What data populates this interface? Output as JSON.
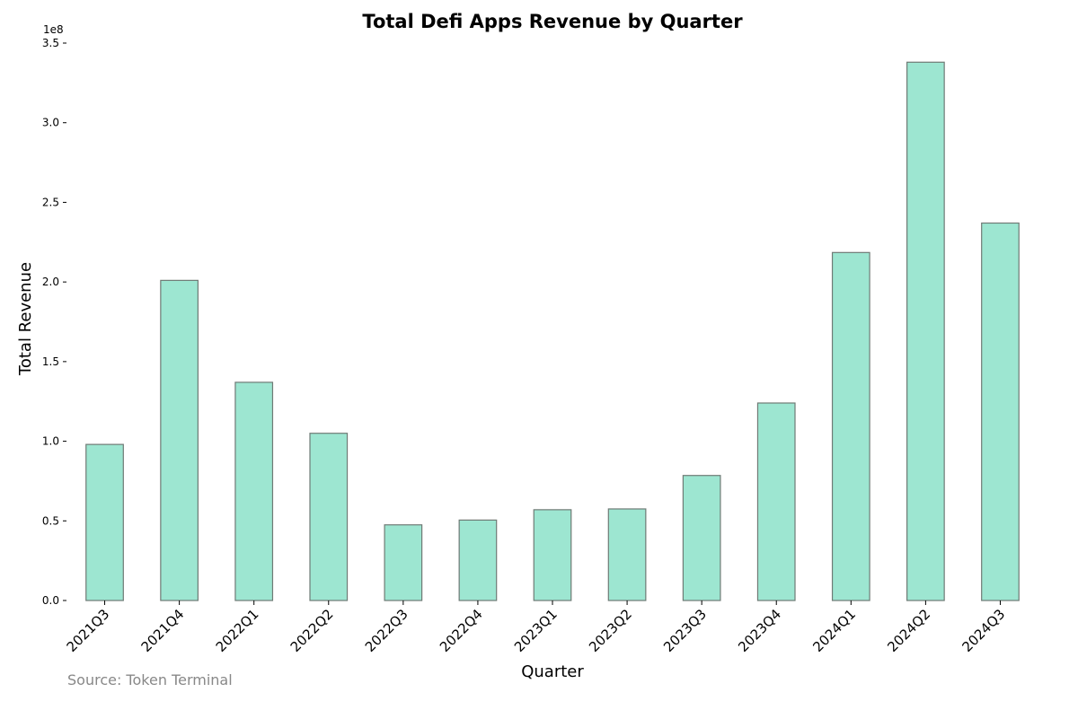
{
  "chart_data": {
    "type": "bar",
    "title": "Total Defi Apps Revenue by Quarter",
    "xlabel": "Quarter",
    "ylabel": "Total Revenue",
    "y_offset_label": "1e8",
    "y_scale": 100000000,
    "ylim": [
      0,
      350000000
    ],
    "yticks": [
      0,
      50000000,
      100000000,
      150000000,
      200000000,
      250000000,
      300000000,
      350000000
    ],
    "ytick_labels": [
      "0.0",
      "0.5",
      "1.0",
      "1.5",
      "2.0",
      "2.5",
      "3.0",
      "3.5"
    ],
    "categories": [
      "2021Q3",
      "2021Q4",
      "2022Q1",
      "2022Q2",
      "2022Q3",
      "2022Q4",
      "2023Q1",
      "2023Q2",
      "2023Q3",
      "2023Q4",
      "2024Q1",
      "2024Q2",
      "2024Q3"
    ],
    "values": [
      98000000,
      201000000,
      137000000,
      105000000,
      47500000,
      50500000,
      57000000,
      57500000,
      78500000,
      124000000,
      218500000,
      338000000,
      237000000
    ],
    "grid": false,
    "legend": null,
    "colors": {
      "bar_fill": "#9de6d1",
      "bar_edge": "#6f7a75"
    },
    "source_note": "Source: Token Terminal"
  }
}
